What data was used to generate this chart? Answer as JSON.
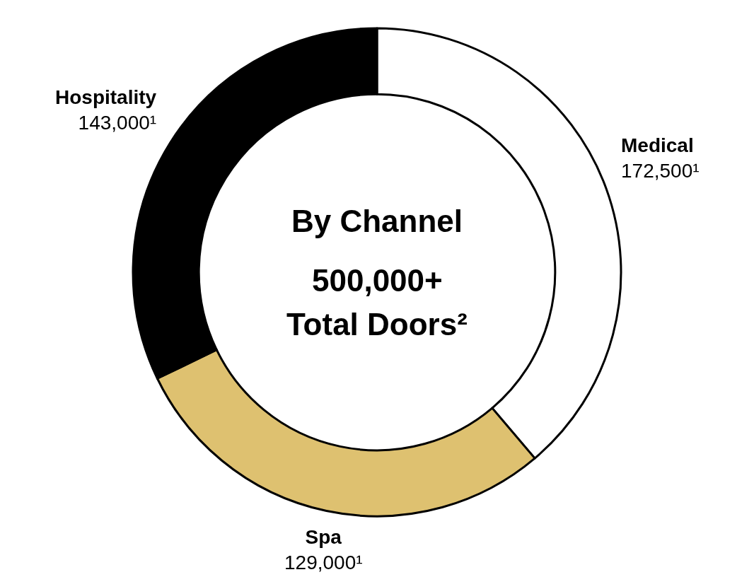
{
  "chart_data": {
    "type": "donut",
    "title": "By Channel",
    "categories": [
      "Medical",
      "Spa",
      "Hospitality"
    ],
    "values": [
      172500,
      129000,
      143000
    ],
    "value_labels": [
      "172,500¹",
      "129,000¹",
      "143,000¹"
    ],
    "colors": [
      "#ffffff",
      "#dec170",
      "#000000"
    ],
    "annotations": [
      "500,000+",
      "Total Doors²"
    ],
    "legend": false
  }
}
